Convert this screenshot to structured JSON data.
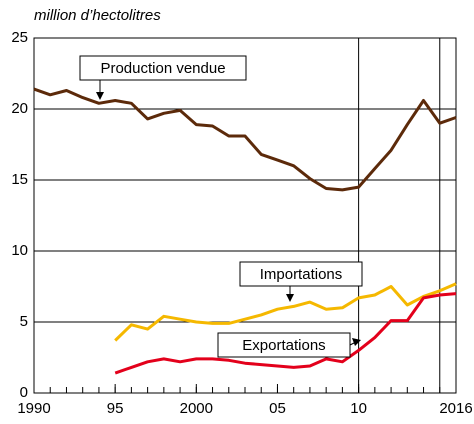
{
  "chart_data": {
    "type": "line",
    "y_label": "million d’hectolitres",
    "x": [
      1990,
      1991,
      1992,
      1993,
      1994,
      1995,
      1996,
      1997,
      1998,
      1999,
      2000,
      2001,
      2002,
      2003,
      2004,
      2005,
      2006,
      2007,
      2008,
      2009,
      2010,
      2011,
      2012,
      2013,
      2014,
      2015,
      2016
    ],
    "series": [
      {
        "name": "Production vendue",
        "color": "#5c2a0a",
        "values": [
          21.4,
          21.0,
          21.3,
          20.8,
          20.4,
          20.6,
          20.4,
          19.3,
          19.7,
          19.9,
          18.9,
          18.8,
          18.1,
          18.1,
          16.8,
          16.4,
          16.0,
          15.1,
          14.4,
          14.3,
          14.5,
          15.8,
          17.1,
          18.9,
          20.6,
          19.0,
          19.4
        ]
      },
      {
        "name": "Importations",
        "color": "#f5b800",
        "values": [
          null,
          null,
          null,
          null,
          null,
          3.7,
          4.8,
          4.5,
          5.4,
          5.2,
          5.0,
          4.9,
          4.9,
          5.2,
          5.5,
          5.9,
          6.1,
          6.4,
          5.9,
          6.0,
          6.7,
          6.9,
          7.5,
          6.2,
          6.8,
          7.2,
          7.7
        ]
      },
      {
        "name": "Exportations",
        "color": "#e3001b",
        "values": [
          null,
          null,
          null,
          null,
          null,
          1.4,
          1.8,
          2.2,
          2.4,
          2.2,
          2.4,
          2.4,
          2.3,
          2.1,
          2.0,
          1.9,
          1.8,
          1.9,
          2.4,
          2.2,
          3.0,
          3.9,
          5.1,
          5.1,
          6.7,
          6.9,
          7.0
        ]
      }
    ],
    "xlim": [
      1990,
      2016
    ],
    "xticks": [
      1990,
      {
        "value": 1995,
        "label": "95"
      },
      2000,
      {
        "value": 2005,
        "label": "05"
      },
      {
        "value": 2010,
        "label": "10"
      },
      2016
    ],
    "x_gridlines": [
      2010,
      2015
    ],
    "ylim": [
      0,
      25
    ],
    "yticks": [
      0,
      5,
      10,
      15,
      20,
      25
    ],
    "grid": true
  }
}
